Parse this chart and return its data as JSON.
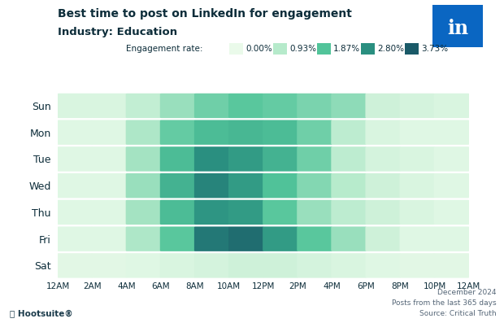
{
  "title_line1": "Best time to post on LinkedIn for engagement",
  "title_line2": "Industry: Education",
  "days": [
    "Sun",
    "Mon",
    "Tue",
    "Wed",
    "Thu",
    "Fri",
    "Sat"
  ],
  "hours": [
    "12AM",
    "2AM",
    "4AM",
    "6AM",
    "8AM",
    "10AM",
    "12PM",
    "2PM",
    "4PM",
    "6PM",
    "8PM",
    "10PM",
    "12AM"
  ],
  "legend_labels": [
    "0.00%",
    "0.93%",
    "1.87%",
    "2.80%",
    "3.73%"
  ],
  "legend_values": [
    0.0,
    0.93,
    1.87,
    2.8,
    3.73
  ],
  "vmin": 0.0,
  "vmax": 3.73,
  "footer_right": "December 2024\nPosts from the last 365 days\nSource: Critical Truth",
  "linkedin_color": "#0A66C2",
  "heatmap_data": [
    [
      0.3,
      0.3,
      0.7,
      1.2,
      1.6,
      1.8,
      1.7,
      1.5,
      1.3,
      0.5,
      0.4,
      0.3
    ],
    [
      0.2,
      0.2,
      1.0,
      1.7,
      2.0,
      2.1,
      2.0,
      1.6,
      0.8,
      0.3,
      0.2,
      0.2
    ],
    [
      0.2,
      0.2,
      1.1,
      2.0,
      2.8,
      2.6,
      2.2,
      1.6,
      0.8,
      0.4,
      0.3,
      0.2
    ],
    [
      0.2,
      0.2,
      1.2,
      2.2,
      3.0,
      2.6,
      1.9,
      1.4,
      0.9,
      0.5,
      0.3,
      0.2
    ],
    [
      0.2,
      0.2,
      1.1,
      2.0,
      2.7,
      2.6,
      1.8,
      1.2,
      0.8,
      0.5,
      0.3,
      0.2
    ],
    [
      0.2,
      0.2,
      1.0,
      1.8,
      3.2,
      3.4,
      2.6,
      1.8,
      1.2,
      0.5,
      0.2,
      0.2
    ],
    [
      0.15,
      0.15,
      0.2,
      0.3,
      0.4,
      0.5,
      0.5,
      0.4,
      0.3,
      0.2,
      0.15,
      0.15
    ]
  ],
  "background_color": "#ffffff",
  "title_color": "#0d2d3a",
  "text_color": "#4a6070",
  "colormap_colors": [
    "#eafaea",
    "#b5eacb",
    "#52c49a",
    "#2a9080",
    "#1a5a68"
  ]
}
